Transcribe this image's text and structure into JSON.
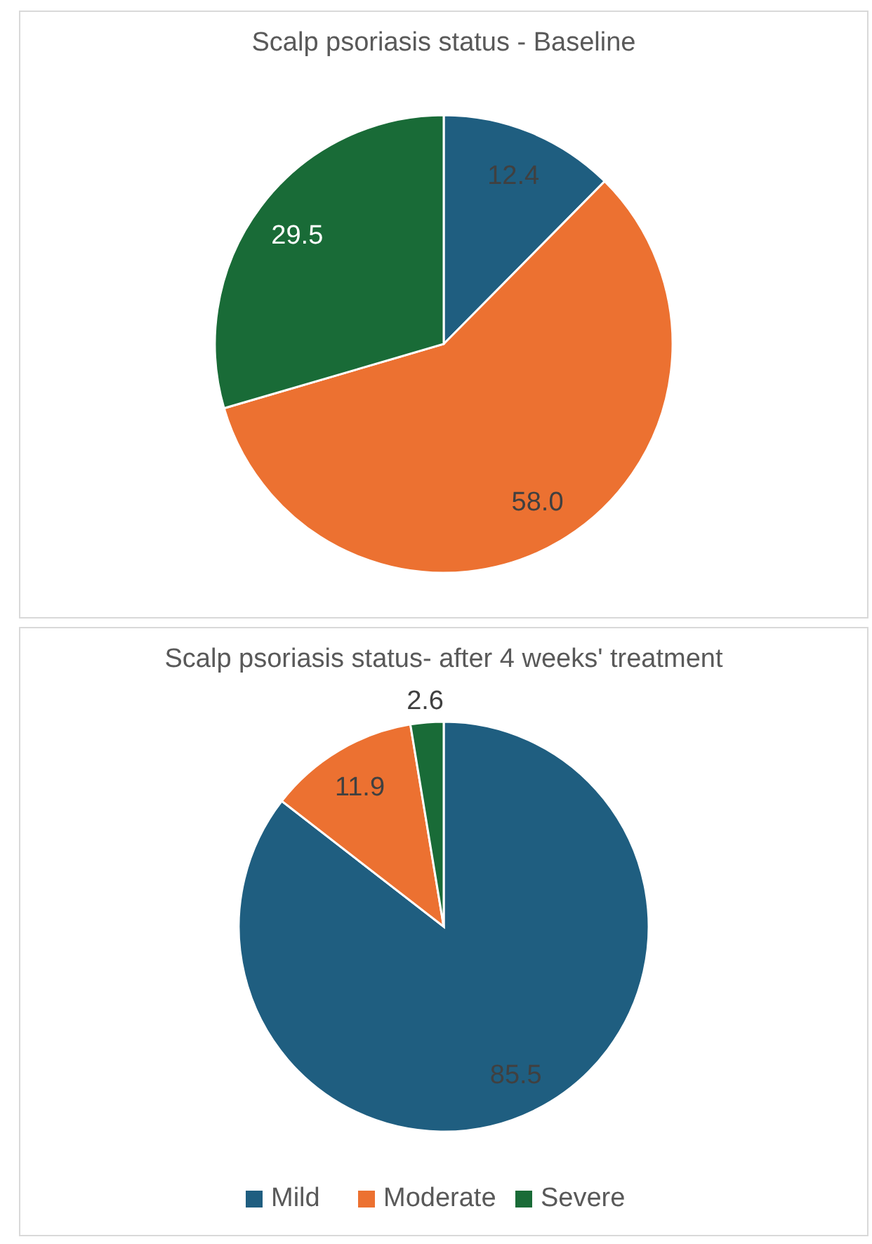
{
  "chart_data": [
    {
      "type": "pie",
      "title": "Scalp psoriasis status - Baseline",
      "categories": [
        null,
        null,
        null
      ],
      "values": [
        12.4,
        58.0,
        29.5
      ],
      "value_labels": [
        "12.4",
        "58.0",
        "29.5"
      ],
      "colors": [
        "#1f5e80",
        "#ec7131",
        "#196b37"
      ],
      "legend": false
    },
    {
      "type": "pie",
      "title": "Scalp psoriasis status- after 4 weeks' treatment",
      "categories": [
        "Mild",
        "Moderate",
        "Severe"
      ],
      "values": [
        85.5,
        11.9,
        2.6
      ],
      "value_labels": [
        "85.5",
        "11.9",
        "2.6"
      ],
      "colors": [
        "#1f5e80",
        "#ec7131",
        "#196b37"
      ],
      "legend": "bottom"
    }
  ]
}
